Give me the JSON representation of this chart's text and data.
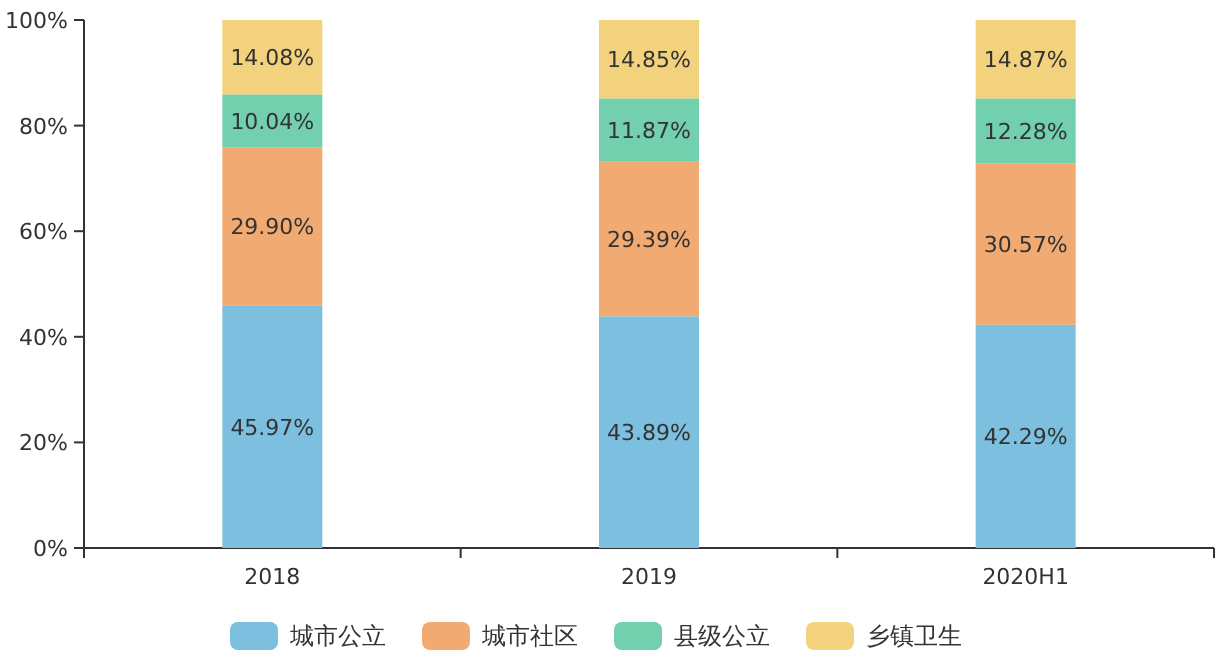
{
  "chart_data": {
    "type": "bar",
    "stacked": true,
    "categories": [
      "2018",
      "2019",
      "2020H1"
    ],
    "series": [
      {
        "name": "城市公立",
        "color": "#7cbfdf",
        "values": [
          45.97,
          43.89,
          42.29
        ],
        "value_labels": [
          "45.97%",
          "43.89%",
          "42.29%"
        ]
      },
      {
        "name": "城市社区",
        "color": "#f0aa72",
        "values": [
          29.9,
          29.39,
          30.57
        ],
        "value_labels": [
          "29.90%",
          "29.39%",
          "30.57%"
        ]
      },
      {
        "name": "县级公立",
        "color": "#72d0ae",
        "values": [
          10.04,
          11.87,
          12.28
        ],
        "value_labels": [
          "10.04%",
          "11.87%",
          "12.28%"
        ]
      },
      {
        "name": "乡镇卫生",
        "color": "#f2d27c",
        "values": [
          14.08,
          14.85,
          14.87
        ],
        "value_labels": [
          "14.08%",
          "14.85%",
          "14.87%"
        ]
      }
    ],
    "ylim": [
      0,
      100
    ],
    "yticks": [
      {
        "value": 0,
        "label": "0%"
      },
      {
        "value": 20,
        "label": "20%"
      },
      {
        "value": 40,
        "label": "40%"
      },
      {
        "value": 60,
        "label": "60%"
      },
      {
        "value": 80,
        "label": "80%"
      },
      {
        "value": 100,
        "label": "100%"
      }
    ],
    "legend": "bottom",
    "grid": false
  }
}
